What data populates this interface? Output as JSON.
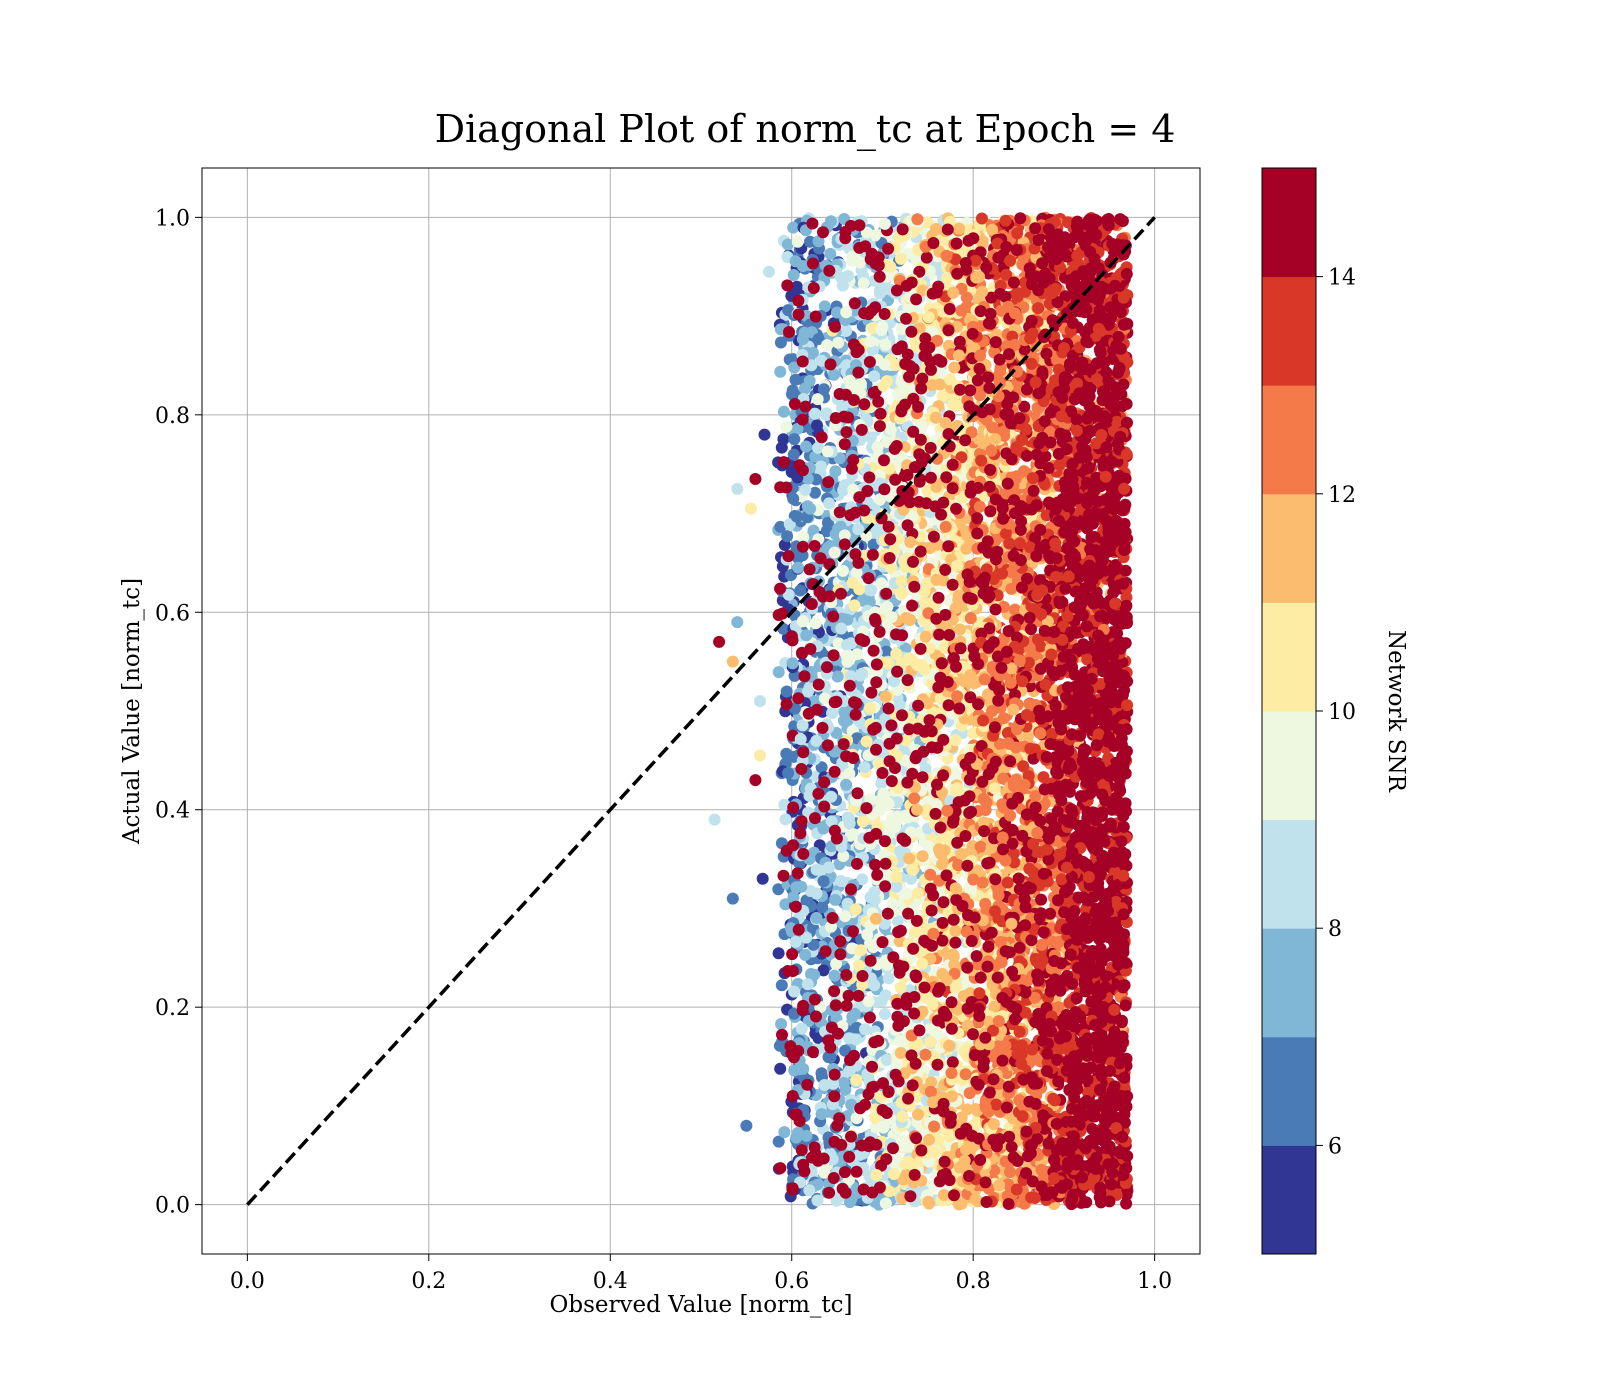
{
  "chart_data": {
    "type": "scatter",
    "title": "Diagonal Plot of norm_tc at Epoch = 4",
    "xlabel": "Observed Value [norm_tc]",
    "ylabel": "Actual Value [norm_tc]",
    "xlim": [
      -0.05,
      1.05
    ],
    "ylim": [
      -0.05,
      1.05
    ],
    "xticks": [
      "0.0",
      "0.2",
      "0.4",
      "0.6",
      "0.8",
      "1.0"
    ],
    "yticks": [
      "0.0",
      "0.2",
      "0.4",
      "0.6",
      "0.8",
      "1.0"
    ],
    "grid": true,
    "reference_line": {
      "style": "dashed",
      "color": "#000000",
      "from": [
        0,
        0
      ],
      "to": [
        1,
        1
      ]
    },
    "point_distribution": {
      "x_range": [
        0.58,
        0.97
      ],
      "y_range": [
        0.0,
        1.0
      ],
      "snr_trend": "network SNR increases with observed value; highest (>=14) concentrated at x 0.88-0.97",
      "outliers": [
        {
          "x": 0.515,
          "y": 0.39,
          "snr": 8
        },
        {
          "x": 0.52,
          "y": 0.57,
          "snr": 15
        },
        {
          "x": 0.535,
          "y": 0.55,
          "snr": 11.5
        },
        {
          "x": 0.54,
          "y": 0.59,
          "snr": 7
        },
        {
          "x": 0.54,
          "y": 0.725,
          "snr": 8
        },
        {
          "x": 0.535,
          "y": 0.31,
          "snr": 6
        },
        {
          "x": 0.55,
          "y": 0.08,
          "snr": 6
        },
        {
          "x": 0.555,
          "y": 0.705,
          "snr": 10
        },
        {
          "x": 0.56,
          "y": 0.735,
          "snr": 14
        },
        {
          "x": 0.56,
          "y": 0.43,
          "snr": 15
        },
        {
          "x": 0.565,
          "y": 0.51,
          "snr": 8
        },
        {
          "x": 0.57,
          "y": 0.78,
          "snr": 5
        },
        {
          "x": 0.575,
          "y": 0.945,
          "snr": 8
        },
        {
          "x": 0.565,
          "y": 0.455,
          "snr": 10
        },
        {
          "x": 0.568,
          "y": 0.33,
          "snr": 5
        }
      ]
    },
    "colorbar": {
      "label": "Network SNR",
      "range": [
        5,
        15
      ],
      "ticks": [
        "6",
        "8",
        "10",
        "12",
        "14"
      ],
      "tick_values": [
        6,
        8,
        10,
        12,
        14
      ],
      "bins": [
        {
          "from": 5,
          "to": 6,
          "color": "#313695"
        },
        {
          "from": 6,
          "to": 7,
          "color": "#4a7bb7"
        },
        {
          "from": 7,
          "to": 8,
          "color": "#80b6d6"
        },
        {
          "from": 8,
          "to": 9,
          "color": "#c0e2ec"
        },
        {
          "from": 9,
          "to": 10,
          "color": "#eef7df"
        },
        {
          "from": 10,
          "to": 11,
          "color": "#fdeda4"
        },
        {
          "from": 11,
          "to": 12,
          "color": "#fbbc6e"
        },
        {
          "from": 12,
          "to": 13,
          "color": "#f47a4a"
        },
        {
          "from": 13,
          "to": 14,
          "color": "#d93829"
        },
        {
          "from": 14,
          "to": 15,
          "color": "#a50026"
        }
      ]
    }
  }
}
